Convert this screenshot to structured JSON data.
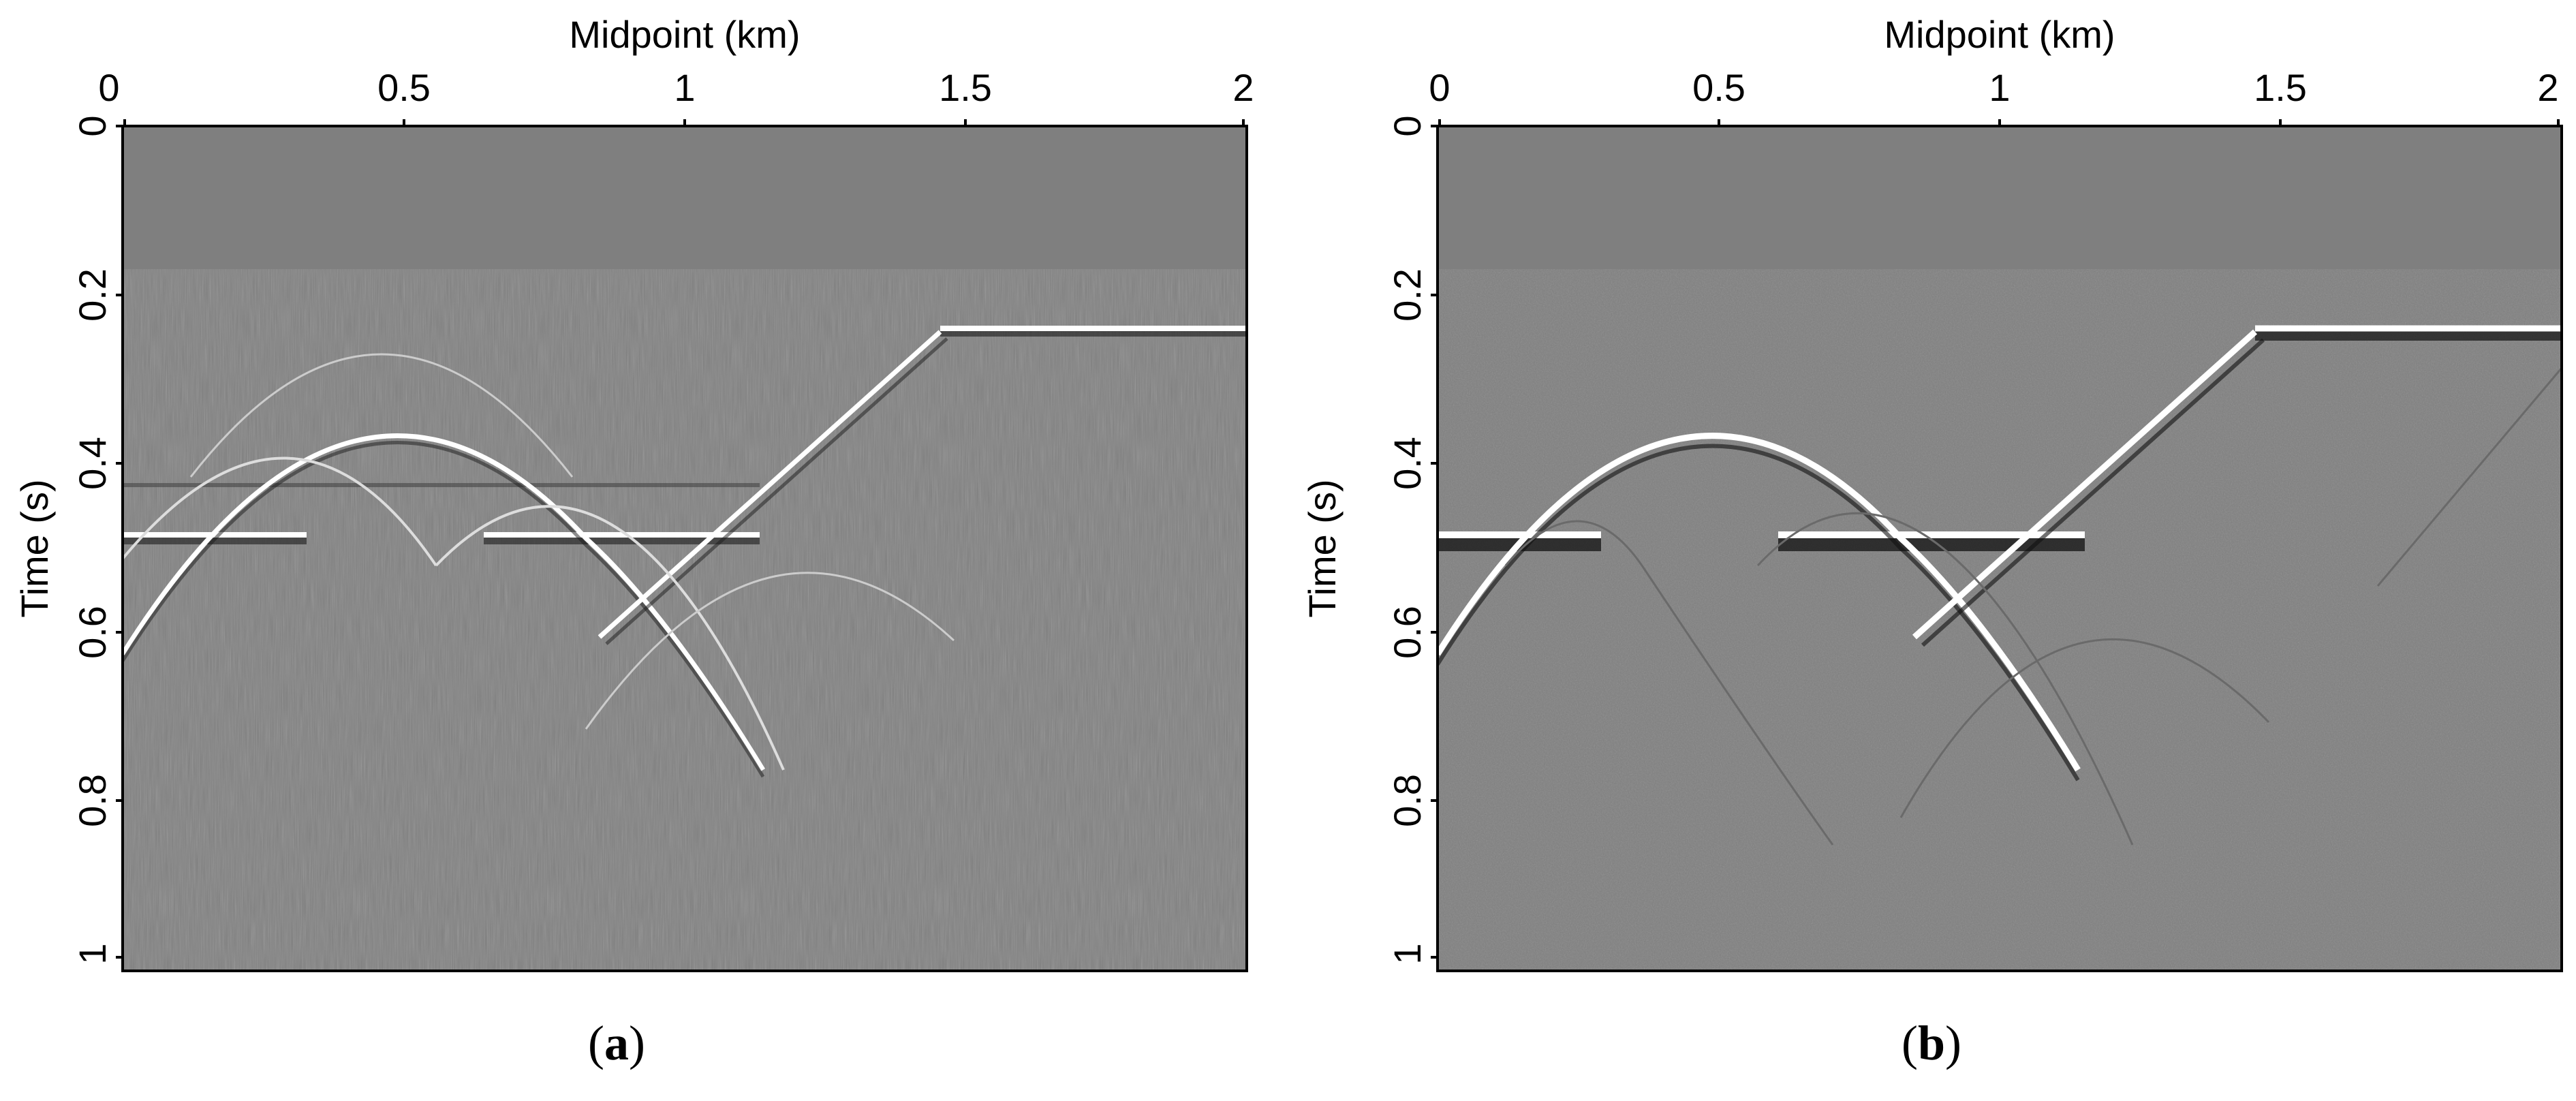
{
  "figure": {
    "panels": [
      {
        "id": "a",
        "caption_open": "(",
        "caption_letter": "a",
        "caption_close": ")",
        "x_axis_label": "Midpoint (km)",
        "y_axis_label": "Time (s)",
        "x_ticks": [
          "0",
          "0.5",
          "1",
          "1.5",
          "2"
        ],
        "y_ticks": [
          "0",
          "0.2",
          "0.4",
          "0.6",
          "0.8",
          "1"
        ]
      },
      {
        "id": "b",
        "caption_open": "(",
        "caption_letter": "b",
        "caption_close": ")",
        "x_axis_label": "Midpoint (km)",
        "y_axis_label": "Time (s)",
        "x_ticks": [
          "0",
          "0.5",
          "1",
          "1.5",
          "2"
        ],
        "y_ticks": [
          "0",
          "0.2",
          "0.4",
          "0.6",
          "0.8",
          "1"
        ]
      }
    ],
    "background_gray": "#7f7f7f",
    "event_color": "#ffffff",
    "shadow_color": "#1a1a1a"
  }
}
